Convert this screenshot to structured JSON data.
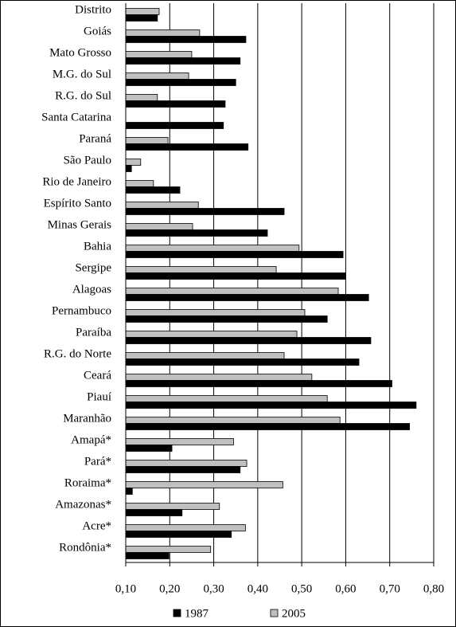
{
  "chart_data": {
    "type": "bar",
    "orientation": "horizontal",
    "categories": [
      "Distrito",
      "Goiás",
      "Mato Grosso",
      "M.G. do Sul",
      "R.G. do Sul",
      "Santa Catarina",
      "Paraná",
      "São Paulo",
      "Rio de Janeiro",
      "Espírito Santo",
      "Minas Gerais",
      "Bahia",
      "Sergipe",
      "Alagoas",
      "Pernambuco",
      "Paraíba",
      "R.G. do Norte",
      "Ceará",
      "Piauí",
      "Maranhão",
      "Amapá*",
      "Pará*",
      "Roraima*",
      "Amazonas*",
      "Acre*",
      "Rondônia*"
    ],
    "series": [
      {
        "name": "1987",
        "color": "#000000",
        "values": [
          0.172,
          0.373,
          0.36,
          0.35,
          0.326,
          0.322,
          0.378,
          0.113,
          0.223,
          0.46,
          0.422,
          0.594,
          0.6,
          0.652,
          0.558,
          0.657,
          0.63,
          0.705,
          0.76,
          0.745,
          0.205,
          0.36,
          0.115,
          0.228,
          0.34,
          0.198
        ]
      },
      {
        "name": "2005",
        "color": "#c0c0c0",
        "values": [
          0.176,
          0.268,
          0.25,
          0.243,
          0.172,
          null,
          0.196,
          0.134,
          0.163,
          0.265,
          0.252,
          0.494,
          0.442,
          0.583,
          0.507,
          0.489,
          0.46,
          0.523,
          0.558,
          0.587,
          0.345,
          0.375,
          0.457,
          0.313,
          0.372,
          0.293
        ]
      }
    ],
    "xlim": [
      0.1,
      0.8
    ],
    "xticks": [
      {
        "value": 0.1,
        "label": "0,10"
      },
      {
        "value": 0.2,
        "label": "0,20"
      },
      {
        "value": 0.3,
        "label": "0,30"
      },
      {
        "value": 0.4,
        "label": "0,40"
      },
      {
        "value": 0.5,
        "label": "0,50"
      },
      {
        "value": 0.6,
        "label": "0,60"
      },
      {
        "value": 0.7,
        "label": "0,70"
      },
      {
        "value": 0.8,
        "label": "0,80"
      }
    ],
    "grid": true,
    "legend": "bottom"
  }
}
